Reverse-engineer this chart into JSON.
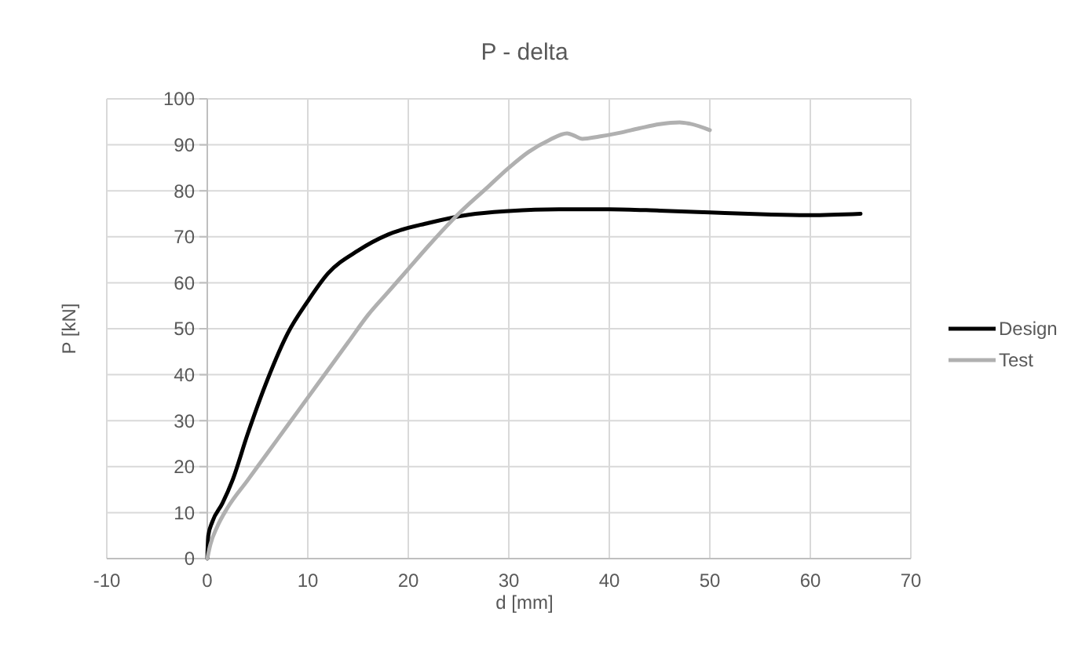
{
  "chart_data": {
    "type": "line",
    "title": "P - delta",
    "xlabel": "d [mm]",
    "ylabel": "P [kN]",
    "xlim": [
      -10,
      70
    ],
    "xticks": [
      -10,
      0,
      10,
      20,
      30,
      40,
      50,
      60,
      70
    ],
    "ylim": [
      0,
      100
    ],
    "yticks": [
      0,
      10,
      20,
      30,
      40,
      50,
      60,
      70,
      80,
      90,
      100
    ],
    "grid": true,
    "legend": "right",
    "marker": "none",
    "line_style": "solid",
    "series": [
      {
        "name": "Design",
        "color": "#000000",
        "x": [
          0,
          0.1,
          0.5,
          1.5,
          2.5,
          4,
          6,
          8,
          10,
          12,
          15,
          18,
          22,
          26,
          30,
          35,
          40,
          45,
          50,
          55,
          60,
          65
        ],
        "values": [
          0,
          5,
          8,
          12,
          17,
          27,
          39,
          49,
          56,
          62,
          67,
          70.5,
          73,
          74.8,
          75.6,
          76,
          76,
          75.7,
          75.3,
          74.9,
          74.7,
          75
        ]
      },
      {
        "name": "Test",
        "color": "#b0b0b0",
        "x": [
          0,
          0.3,
          1,
          2,
          4,
          6,
          8,
          10,
          12,
          14,
          16,
          18,
          20,
          22,
          25,
          28,
          30,
          32,
          34,
          35.8,
          36.5,
          37.3,
          39,
          41,
          43,
          45,
          47,
          48,
          50
        ],
        "values": [
          0,
          3,
          7,
          11,
          17,
          23,
          29,
          35,
          41,
          47,
          53,
          58,
          63,
          68,
          75,
          81,
          85,
          88.5,
          91,
          92.5,
          92,
          91.3,
          91.8,
          92.6,
          93.6,
          94.5,
          94.9,
          94.6,
          93.2
        ]
      }
    ]
  }
}
